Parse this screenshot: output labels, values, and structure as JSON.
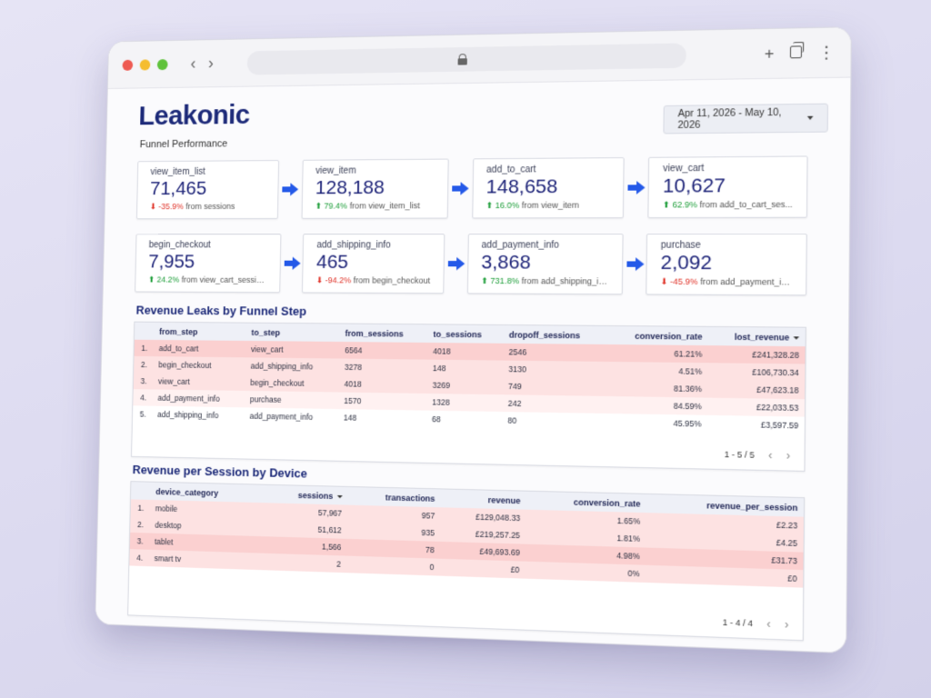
{
  "app": {
    "brand": "Leakonic",
    "subtitle": "Funnel Performance",
    "date_range": "Apr 11, 2026 - May 10, 2026"
  },
  "colors": {
    "brand": "#1d2a79",
    "value": "#20267a",
    "arrow": "#2459e8",
    "up": "#1e9e3a",
    "down": "#e0352b",
    "row_heavy": "#fbd0d0",
    "row_medium": "#fde2e2",
    "row_light": "#fff1f1"
  },
  "cards_row1": [
    {
      "name": "view_item_list",
      "value": "71,465",
      "dir": "down",
      "pct": "-35.9%",
      "from": "from sessions"
    },
    {
      "name": "view_item",
      "value": "128,188",
      "dir": "up",
      "pct": "79.4%",
      "from": "from view_item_list"
    },
    {
      "name": "add_to_cart",
      "value": "148,658",
      "dir": "up",
      "pct": "16.0%",
      "from": "from view_item"
    },
    {
      "name": "view_cart",
      "value": "10,627",
      "dir": "up",
      "pct": "62.9%",
      "from": "from add_to_cart_ses..."
    }
  ],
  "cards_row2": [
    {
      "name": "begin_checkout",
      "value": "7,955",
      "dir": "up",
      "pct": "24.2%",
      "from": "from view_cart_sessions"
    },
    {
      "name": "add_shipping_info",
      "value": "465",
      "dir": "down",
      "pct": "-94.2%",
      "from": "from begin_checkout"
    },
    {
      "name": "add_payment_info",
      "value": "3,868",
      "dir": "up",
      "pct": "731.8%",
      "from": "from add_shipping_info"
    },
    {
      "name": "purchase",
      "value": "2,092",
      "dir": "down",
      "pct": "-45.9%",
      "from": "from add_payment_info"
    }
  ],
  "leaks": {
    "title": "Revenue Leaks by Funnel Step",
    "columns": [
      "from_step",
      "to_step",
      "from_sessions",
      "to_sessions",
      "dropoff_sessions",
      "conversion_rate",
      "lost_revenue"
    ],
    "rows": [
      {
        "idx": "1.",
        "from_step": "add_to_cart",
        "to_step": "view_cart",
        "from_sessions": "6564",
        "to_sessions": "4018",
        "dropoff_sessions": "2546",
        "conversion_rate": "61.21%",
        "lost_revenue": "£241,328.28",
        "shade": "heavy"
      },
      {
        "idx": "2.",
        "from_step": "begin_checkout",
        "to_step": "add_shipping_info",
        "from_sessions": "3278",
        "to_sessions": "148",
        "dropoff_sessions": "3130",
        "conversion_rate": "4.51%",
        "lost_revenue": "£106,730.34",
        "shade": "medium"
      },
      {
        "idx": "3.",
        "from_step": "view_cart",
        "to_step": "begin_checkout",
        "from_sessions": "4018",
        "to_sessions": "3269",
        "dropoff_sessions": "749",
        "conversion_rate": "81.36%",
        "lost_revenue": "£47,623.18",
        "shade": "medium"
      },
      {
        "idx": "4.",
        "from_step": "add_payment_info",
        "to_step": "purchase",
        "from_sessions": "1570",
        "to_sessions": "1328",
        "dropoff_sessions": "242",
        "conversion_rate": "84.59%",
        "lost_revenue": "£22,033.53",
        "shade": "light"
      },
      {
        "idx": "5.",
        "from_step": "add_shipping_info",
        "to_step": "add_payment_info",
        "from_sessions": "148",
        "to_sessions": "68",
        "dropoff_sessions": "80",
        "conversion_rate": "45.95%",
        "lost_revenue": "£3,597.59",
        "shade": "none"
      }
    ],
    "pager": "1 - 5 / 5"
  },
  "devices": {
    "title": "Revenue per Session by Device",
    "columns": [
      "device_category",
      "sessions",
      "transactions",
      "revenue",
      "conversion_rate",
      "revenue_per_session"
    ],
    "rows": [
      {
        "idx": "1.",
        "device_category": "mobile",
        "sessions": "57,967",
        "transactions": "957",
        "revenue": "£129,048.33",
        "conversion_rate": "1.65%",
        "revenue_per_session": "£2.23",
        "shade": "medium"
      },
      {
        "idx": "2.",
        "device_category": "desktop",
        "sessions": "51,612",
        "transactions": "935",
        "revenue": "£219,257.25",
        "conversion_rate": "1.81%",
        "revenue_per_session": "£4.25",
        "shade": "medium"
      },
      {
        "idx": "3.",
        "device_category": "tablet",
        "sessions": "1,566",
        "transactions": "78",
        "revenue": "£49,693.69",
        "conversion_rate": "4.98%",
        "revenue_per_session": "£31.73",
        "shade": "heavy"
      },
      {
        "idx": "4.",
        "device_category": "smart tv",
        "sessions": "2",
        "transactions": "0",
        "revenue": "£0",
        "conversion_rate": "0%",
        "revenue_per_session": "£0",
        "shade": "medium"
      }
    ],
    "pager": "1 - 4 / 4"
  }
}
